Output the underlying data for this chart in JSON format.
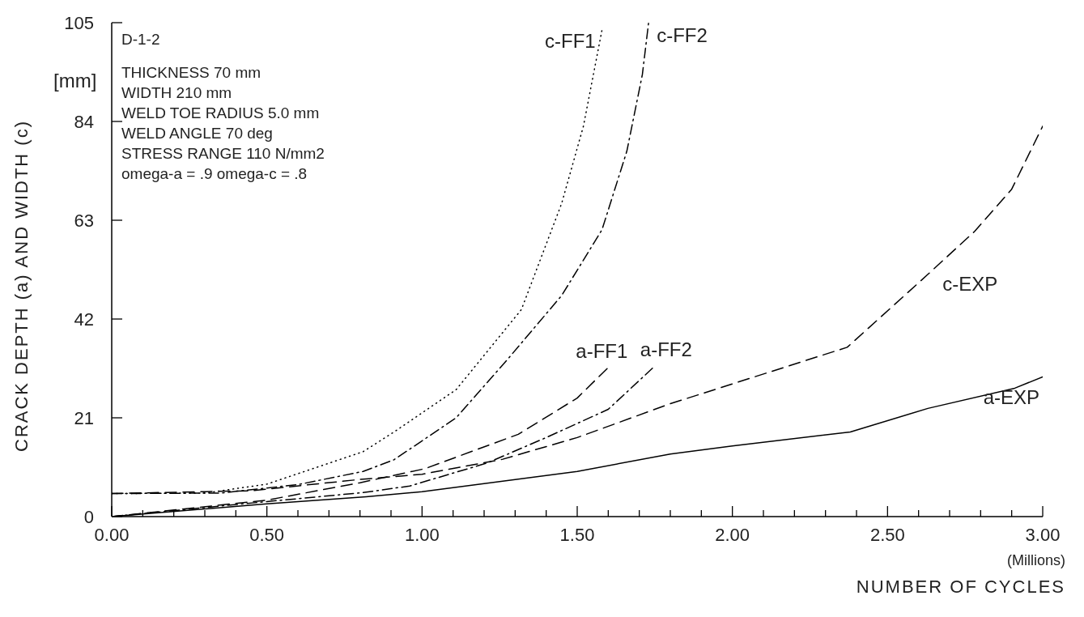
{
  "chart_data": {
    "type": "line",
    "xlabel": "NUMBER OF CYCLES",
    "ylabel": "CRACK DEPTH (a) AND WIDTH (c)",
    "annotations": [
      "D-1-2",
      "THICKNESS 70 mm",
      "WIDTH 210 mm",
      "WELD TOE RADIUS 5.0 mm",
      "WELD ANGLE 70 deg",
      "STRESS RANGE 110 N/mm2",
      "omega-a = .9 omega-c = .8",
      "[mm]",
      "(Millions)"
    ],
    "xlim": [
      0,
      3
    ],
    "xticks": [
      {
        "value": 0,
        "label": "0.00"
      },
      {
        "value": 0.1,
        "label": null
      },
      {
        "value": 0.2,
        "label": null
      },
      {
        "value": 0.3,
        "label": null
      },
      {
        "value": 0.4,
        "label": null
      },
      {
        "value": 0.5,
        "label": "0.50"
      },
      {
        "value": 0.6,
        "label": null
      },
      {
        "value": 0.7,
        "label": null
      },
      {
        "value": 0.8,
        "label": null
      },
      {
        "value": 0.9,
        "label": null
      },
      {
        "value": 1,
        "label": "1.00"
      },
      {
        "value": 1.1,
        "label": null
      },
      {
        "value": 1.2,
        "label": null
      },
      {
        "value": 1.3,
        "label": null
      },
      {
        "value": 1.4,
        "label": null
      },
      {
        "value": 1.5,
        "label": "1.50"
      },
      {
        "value": 1.6,
        "label": null
      },
      {
        "value": 1.7,
        "label": null
      },
      {
        "value": 1.8,
        "label": null
      },
      {
        "value": 1.9,
        "label": null
      },
      {
        "value": 2,
        "label": "2.00"
      },
      {
        "value": 2.1,
        "label": null
      },
      {
        "value": 2.2,
        "label": null
      },
      {
        "value": 2.3,
        "label": null
      },
      {
        "value": 2.4,
        "label": null
      },
      {
        "value": 2.5,
        "label": "2.50"
      },
      {
        "value": 2.6,
        "label": null
      },
      {
        "value": 2.7,
        "label": null
      },
      {
        "value": 2.8,
        "label": null
      },
      {
        "value": 2.9,
        "label": null
      },
      {
        "value": 3,
        "label": "3.00"
      }
    ],
    "ylim": [
      0,
      105
    ],
    "yticks": [
      0,
      21,
      42,
      63,
      84,
      105
    ],
    "series": [
      {
        "name": "c-FF1",
        "color": "#000000",
        "line_style": "dotted",
        "x": [
          0,
          0.3,
          0.5,
          0.81,
          0.91,
          1.11,
          1.32,
          1.45,
          1.52,
          1.58
        ],
        "values": [
          4.9,
          5,
          6.9,
          13.8,
          18,
          27,
          44,
          66.6,
          83,
          103.5
        ]
      },
      {
        "name": "c-FF2",
        "color": "#000000",
        "line_style": "dashdot",
        "x": [
          0,
          0.35,
          0.6,
          0.81,
          0.91,
          1.11,
          1.27,
          1.45,
          1.58,
          1.66,
          1.71,
          1.73
        ],
        "values": [
          4.9,
          5,
          6.8,
          9.6,
          12.1,
          21,
          33,
          47,
          61,
          77.7,
          94,
          105
        ]
      },
      {
        "name": "a-FF1",
        "color": "#000000",
        "line_style": "dashed",
        "x": [
          0,
          0.5,
          0.8,
          1.01,
          1.31,
          1.5,
          1.6
        ],
        "values": [
          0,
          3.5,
          7.2,
          10.2,
          17.5,
          25.2,
          31.7
        ]
      },
      {
        "name": "a-FF2",
        "color": "#000000",
        "line_style": "dashdot",
        "x": [
          0,
          0.5,
          0.81,
          0.96,
          1.21,
          1.4,
          1.6,
          1.75
        ],
        "values": [
          0,
          3.2,
          5.1,
          6.5,
          11.4,
          16.8,
          22.8,
          32
        ]
      },
      {
        "name": "c-EXP",
        "color": "#000000",
        "line_style": "dashed",
        "x": [
          0,
          0.45,
          0.8,
          1.0,
          1.26,
          1.5,
          1.8,
          2.37,
          2.63,
          2.78,
          2.9,
          3.0
        ],
        "values": [
          4.9,
          5.5,
          7.9,
          9,
          12.2,
          16.8,
          24,
          36,
          51.5,
          60.6,
          69.6,
          83
        ]
      },
      {
        "name": "a-EXP",
        "color": "#000000",
        "line_style": "solid",
        "x": [
          0,
          0.5,
          0.82,
          1.0,
          1.5,
          1.8,
          2.0,
          2.38,
          2.63,
          2.91,
          3.0
        ],
        "values": [
          0,
          2.7,
          4.2,
          5.3,
          9.6,
          13.3,
          15,
          18,
          23,
          27.3,
          29.7
        ]
      }
    ]
  }
}
